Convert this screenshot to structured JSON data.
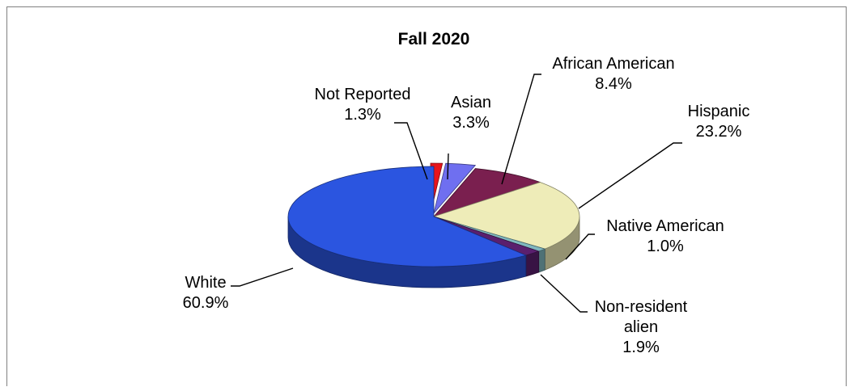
{
  "chart_data": {
    "type": "pie",
    "title": "Fall 2020",
    "slices": [
      {
        "label": "Not Reported",
        "value": 1.3,
        "display": "1.3%",
        "color": "#e8141b"
      },
      {
        "label": "Asian",
        "value": 3.3,
        "display": "3.3%",
        "color": "#6f6ff0"
      },
      {
        "label": "African American",
        "value": 8.4,
        "display": "8.4%",
        "color": "#7a1f4f"
      },
      {
        "label": "Hispanic",
        "value": 23.2,
        "display": "23.2%",
        "color": "#eeecb8"
      },
      {
        "label": "Native American",
        "value": 1.0,
        "display": "1.0%",
        "color": "#7fb7bf"
      },
      {
        "label": "Non-resident alien",
        "value": 1.9,
        "display": "1.9%",
        "color": "#5a1f6e"
      },
      {
        "label": "White",
        "value": 60.9,
        "display": "60.9%",
        "color": "#2b55e0"
      }
    ],
    "style": "3d-exploded",
    "legend": "none",
    "data_labels": "outside-with-leader-lines"
  }
}
